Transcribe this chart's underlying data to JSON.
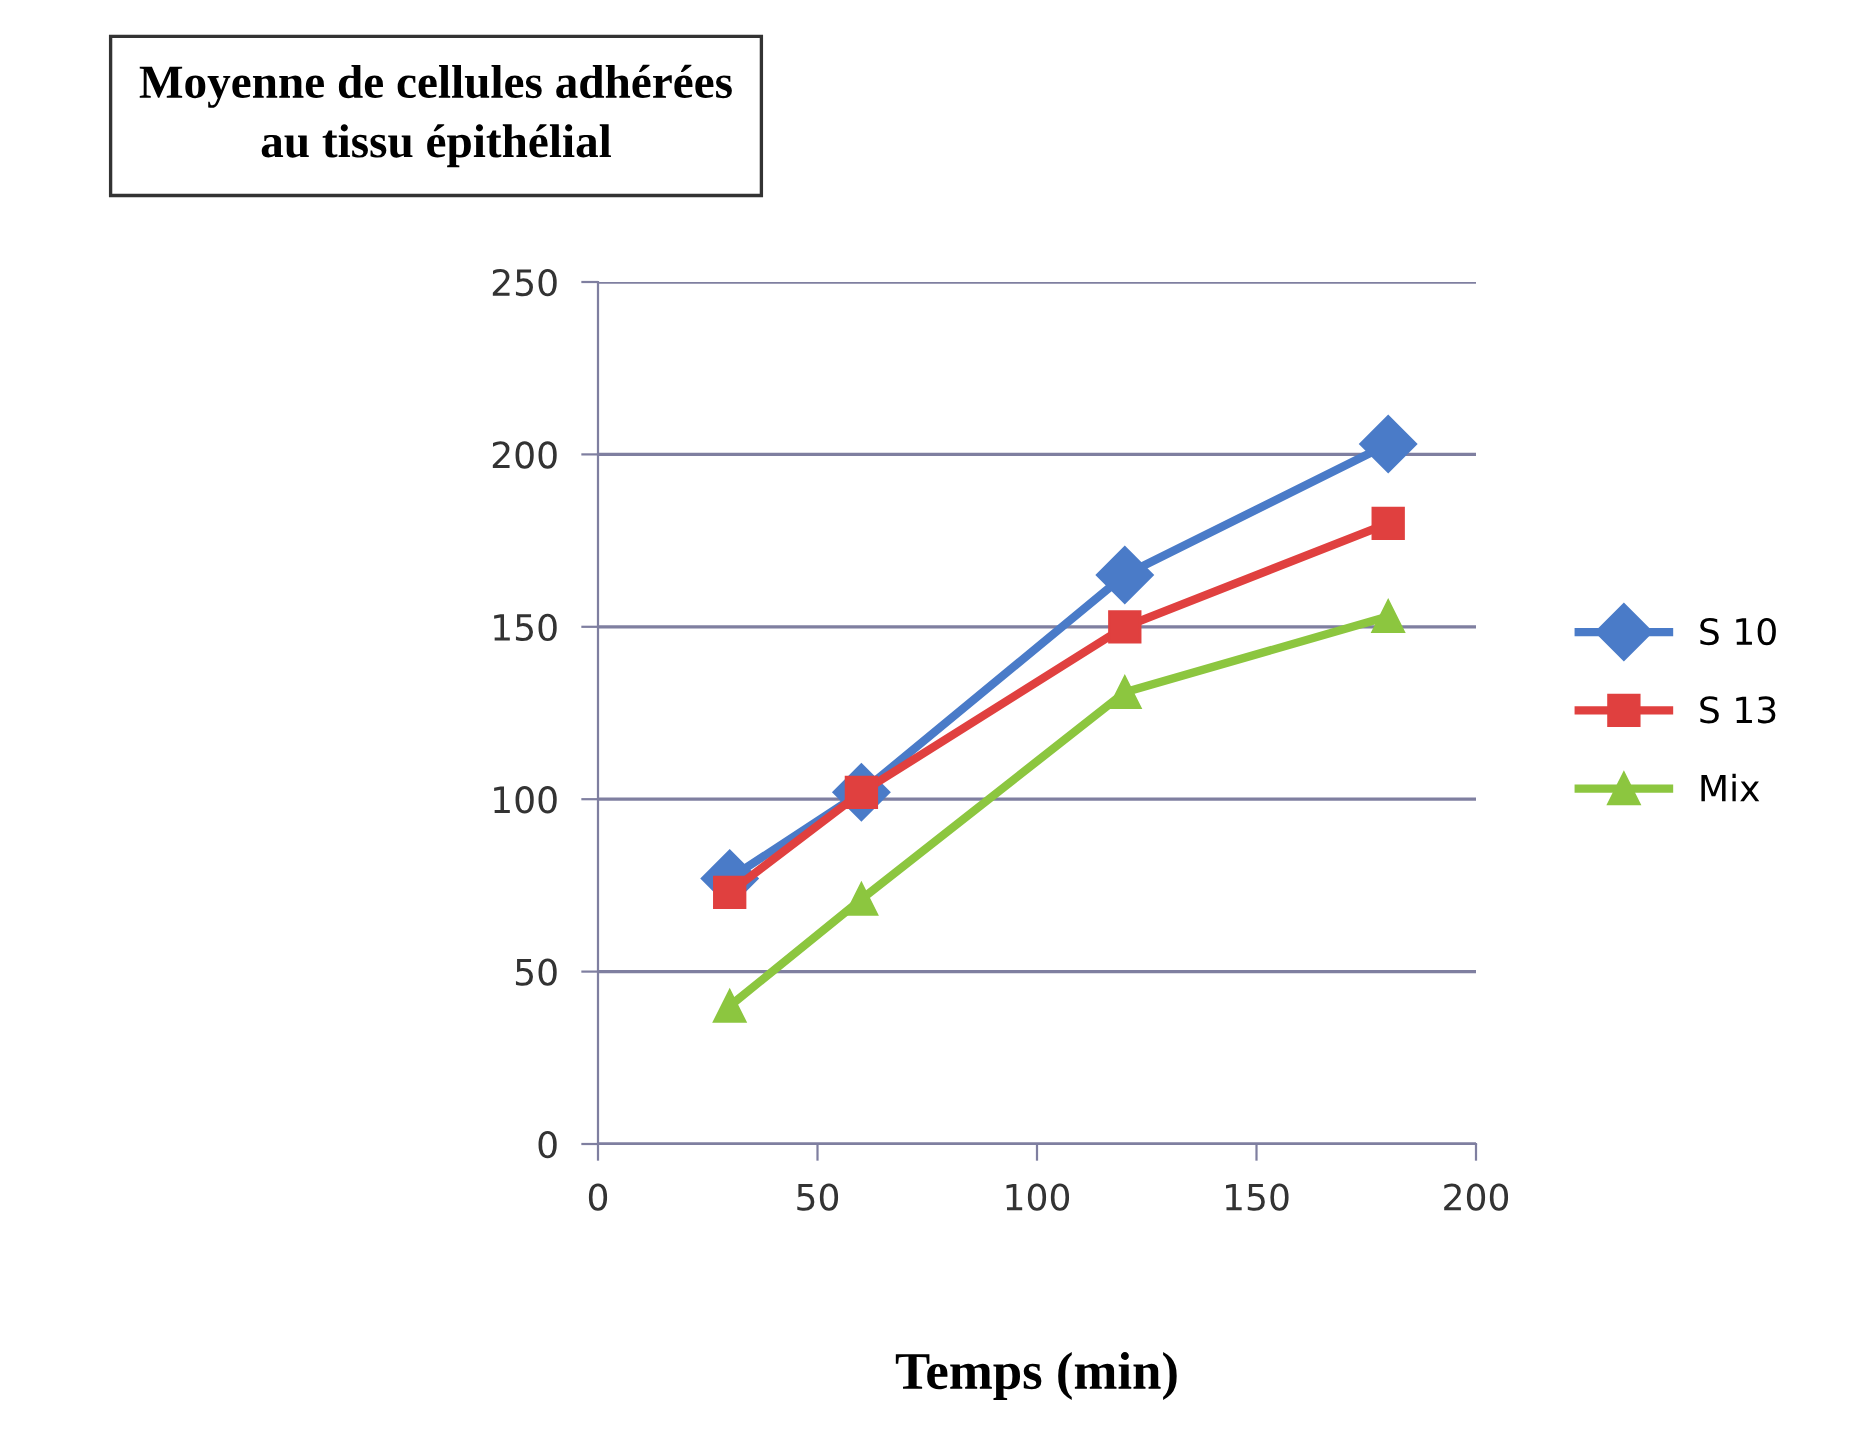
{
  "chart_data": {
    "type": "line",
    "title": "Moyenne de cellules adhérées\nau tissu épithélial",
    "xlabel": "Temps (min)",
    "x": [
      30,
      60,
      120,
      180
    ],
    "series": [
      {
        "name": "S 10",
        "color": "#4a7bc8",
        "marker": "diamond",
        "values": [
          77,
          102,
          165,
          203
        ]
      },
      {
        "name": "S 13",
        "color": "#e0403f",
        "marker": "square",
        "values": [
          73,
          102,
          150,
          180
        ]
      },
      {
        "name": "Mix",
        "color": "#8cc63f",
        "marker": "triangle",
        "values": [
          40,
          71,
          131,
          153
        ]
      }
    ],
    "xlim": [
      0,
      200
    ],
    "xticks": [
      0,
      50,
      100,
      150,
      200
    ],
    "ylim": [
      0,
      250
    ],
    "yticks": [
      0,
      50,
      100,
      150,
      200,
      250
    ],
    "grid": "y",
    "legend": "right"
  }
}
